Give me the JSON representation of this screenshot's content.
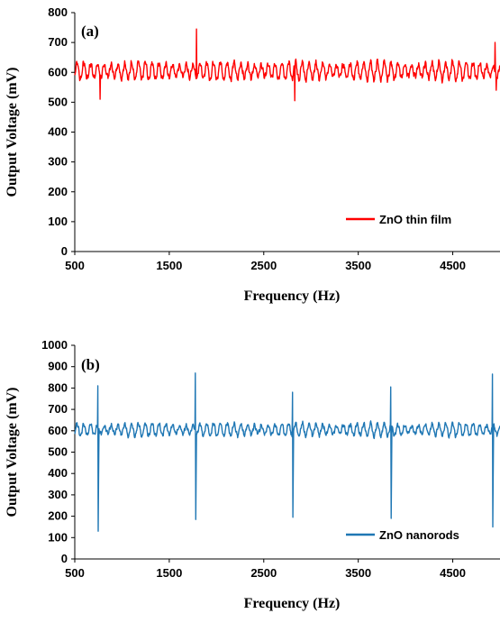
{
  "chart_data": [
    {
      "type": "line",
      "panel_label": "(a)",
      "xlabel": "Frequency (Hz)",
      "ylabel": "Output Voltage (mV)",
      "xlim": [
        500,
        5000
      ],
      "ylim": [
        0,
        800
      ],
      "xticks": [
        500,
        1500,
        2500,
        3500,
        4500
      ],
      "yticks": [
        0,
        100,
        200,
        300,
        400,
        500,
        600,
        700,
        800
      ],
      "legend_position": "lower-right",
      "grid": false,
      "series": [
        {
          "name": "ZnO thin film",
          "color": "#ff0000",
          "baseline": 605,
          "oscillation_amplitude": 30,
          "spikes": [
            {
              "x": 770,
              "y": 510
            },
            {
              "x": 1790,
              "y": 745
            },
            {
              "x": 2830,
              "y": 505
            },
            {
              "x": 4950,
              "y": 700
            },
            {
              "x": 4960,
              "y": 540
            }
          ]
        }
      ]
    },
    {
      "type": "line",
      "panel_label": "(b)",
      "xlabel": "Frequency (Hz)",
      "ylabel": "Output Voltage (mV)",
      "xlim": [
        500,
        5000
      ],
      "ylim": [
        0,
        1000
      ],
      "xticks": [
        500,
        1500,
        2500,
        3500,
        4500
      ],
      "yticks": [
        0,
        100,
        200,
        300,
        400,
        500,
        600,
        700,
        800,
        900,
        1000
      ],
      "legend_position": "lower-right",
      "grid": false,
      "series": [
        {
          "name": "ZnO nanorods",
          "color": "#1f77b4",
          "baseline": 605,
          "oscillation_amplitude": 30,
          "spikes": [
            {
              "x": 745,
              "y": 810,
              "low": 130
            },
            {
              "x": 1775,
              "y": 870,
              "low": 185
            },
            {
              "x": 2805,
              "y": 780,
              "low": 195
            },
            {
              "x": 3845,
              "y": 805,
              "low": 190
            },
            {
              "x": 4920,
              "y": 865,
              "low": 150
            }
          ]
        }
      ]
    }
  ]
}
